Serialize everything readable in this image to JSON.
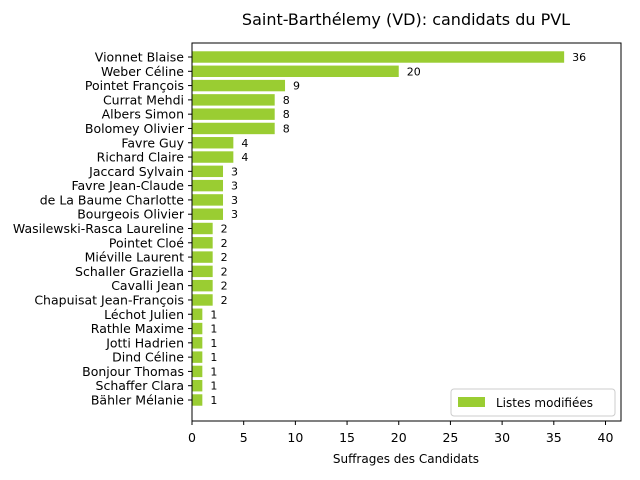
{
  "chart_data": {
    "type": "bar",
    "orientation": "horizontal",
    "title": "Saint-Barthélemy (VD): candidats du PVL",
    "xlabel": "Suffrages des Candidats",
    "ylabel": "",
    "xlim": [
      0,
      41.5
    ],
    "xticks": [
      0,
      5,
      10,
      15,
      20,
      25,
      30,
      35,
      40
    ],
    "grid": false,
    "legend_position": "bottom-right",
    "series": [
      {
        "name": "Listes modifiées",
        "color": "#9acd32",
        "values": [
          36,
          20,
          9,
          8,
          8,
          8,
          4,
          4,
          3,
          3,
          3,
          3,
          2,
          2,
          2,
          2,
          2,
          2,
          1,
          1,
          1,
          1,
          1,
          1,
          1
        ]
      }
    ],
    "categories": [
      "Vionnet Blaise",
      "Weber Céline",
      "Pointet François",
      "Currat Mehdi",
      "Albers Simon",
      "Bolomey Olivier",
      "Favre Guy",
      "Richard Claire",
      "Jaccard Sylvain",
      "Favre Jean-Claude",
      "de La Baume Charlotte",
      "Bourgeois Olivier",
      "Wasilewski-Rasca Laureline",
      "Pointet Cloé",
      "Miéville Laurent",
      "Schaller Graziella",
      "Cavalli Jean",
      "Chapuisat Jean-François",
      "Léchot Julien",
      "Rathle Maxime",
      "Jotti Hadrien",
      "Dind Céline",
      "Bonjour Thomas",
      "Schaffer Clara",
      "Bähler Mélanie"
    ]
  }
}
